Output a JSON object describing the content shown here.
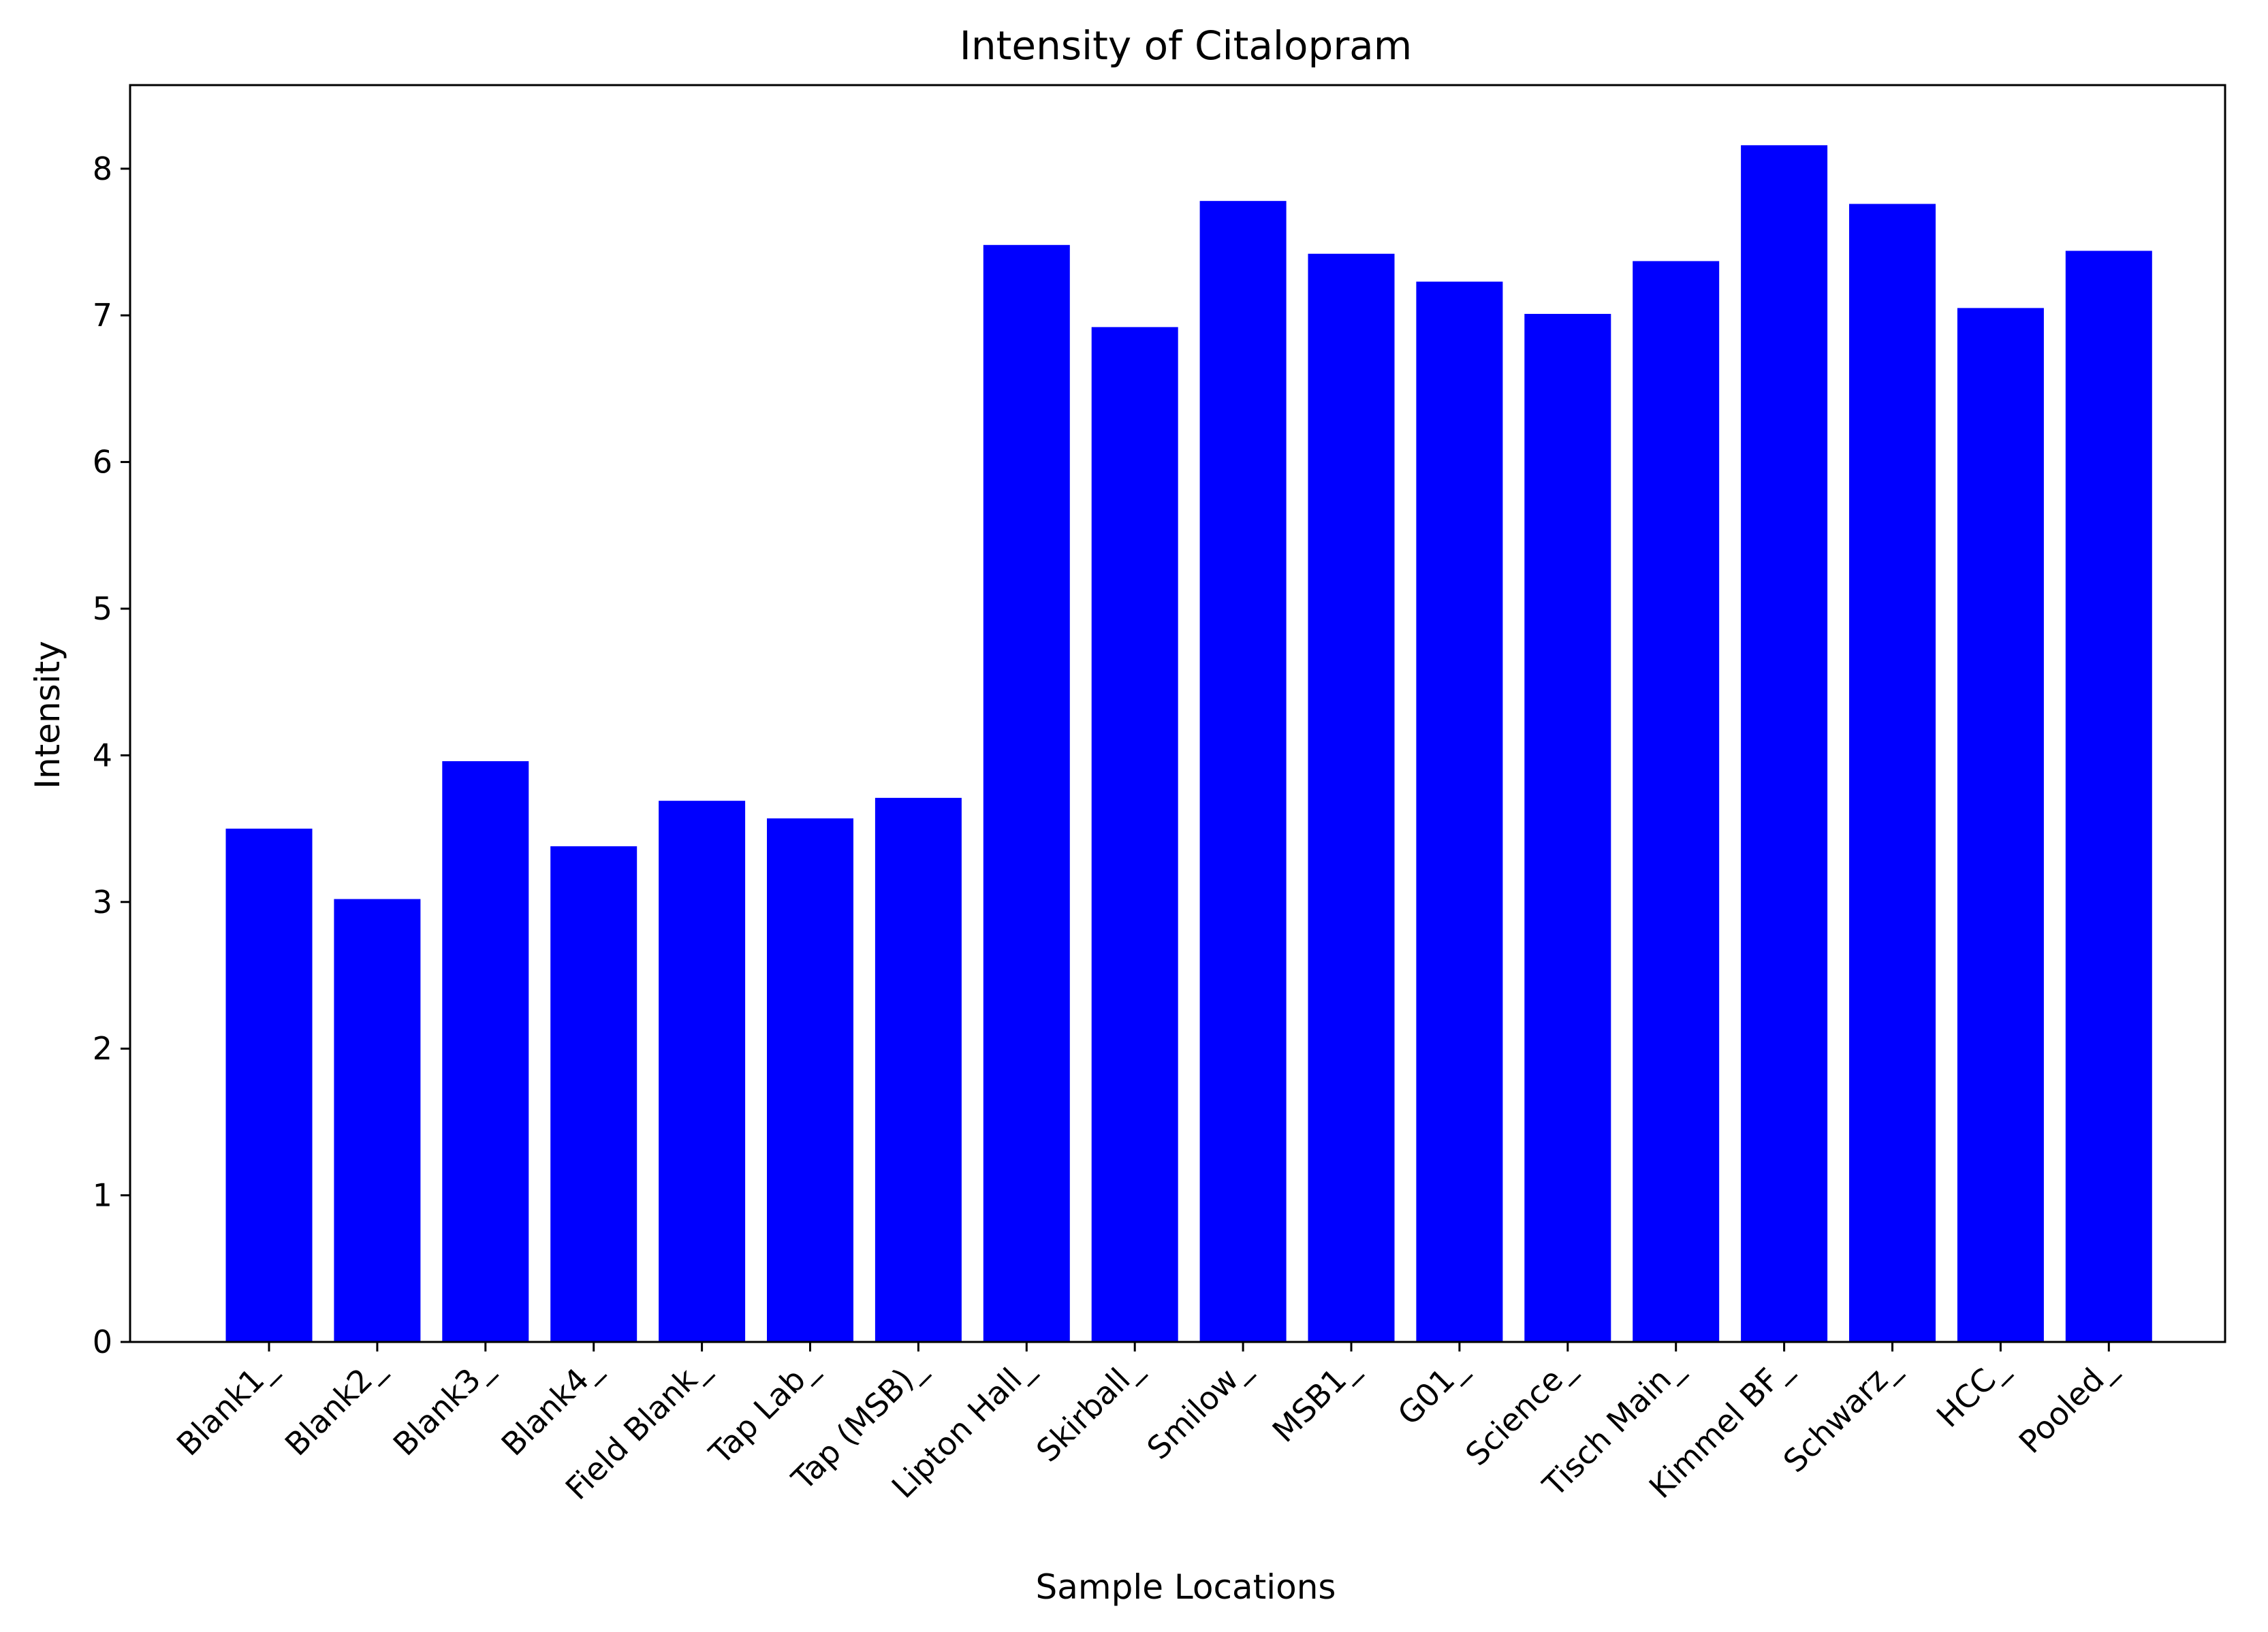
{
  "chart_data": {
    "type": "bar",
    "title": "Intensity of Citalopram",
    "xlabel": "Sample Locations",
    "ylabel": "Intensity",
    "categories": [
      "Blank1_",
      "Blank2_",
      "Blank3_",
      "Blank4_",
      "Field Blank_",
      "Tap Lab_",
      "Tap (MSB)_",
      "Lipton Hall_",
      "Skirball_",
      "Smilow_",
      "MSB1_",
      "G01_",
      "Science_",
      "Tisch Main_",
      "Kimmel BF_",
      "Schwarz_",
      "HCC_",
      "Pooled_"
    ],
    "values": [
      3.5,
      3.02,
      3.96,
      3.38,
      3.69,
      3.57,
      3.71,
      7.48,
      6.92,
      7.78,
      7.42,
      7.23,
      7.01,
      7.37,
      8.16,
      7.76,
      7.05,
      7.44
    ],
    "ylim": [
      0,
      8.57
    ],
    "yticks": [
      0,
      1,
      2,
      3,
      4,
      5,
      6,
      7,
      8
    ],
    "bar_color": "#0000ff",
    "grid": false,
    "legend": false
  }
}
